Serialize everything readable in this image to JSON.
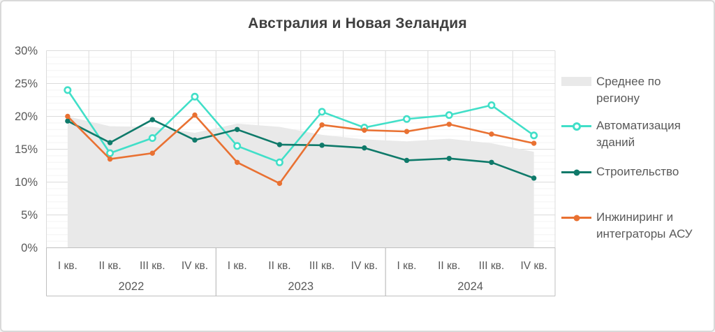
{
  "chart": {
    "title": "Австралия и Новая Зеландия"
  },
  "chart_data": {
    "type": "area+line",
    "title": "Австралия и Новая Зеландия",
    "categories": [
      "I кв. 2022",
      "II кв. 2022",
      "III кв. 2022",
      "IV кв. 2022",
      "I кв. 2023",
      "II кв. 2023",
      "III кв. 2023",
      "IV кв. 2023",
      "I кв. 2024",
      "II кв. 2024",
      "III кв. 2024",
      "IV кв. 2024"
    ],
    "x_axis": {
      "quarter_labels": [
        "I кв.",
        "II кв.",
        "III кв.",
        "IV кв.",
        "I кв.",
        "II кв.",
        "III кв.",
        "IV кв.",
        "I кв.",
        "II кв.",
        "III кв.",
        "IV кв."
      ],
      "year_groups": [
        {
          "label": "2022",
          "start": 0,
          "end": 3
        },
        {
          "label": "2023",
          "start": 4,
          "end": 7
        },
        {
          "label": "2024",
          "start": 8,
          "end": 11
        }
      ]
    },
    "y_axis": {
      "min": 0,
      "max": 30,
      "major_step": 5,
      "minor_step": 1,
      "unit": "%",
      "tick_labels": [
        "0%",
        "5%",
        "10%",
        "15%",
        "20%",
        "25%",
        "30%"
      ]
    },
    "grid": {
      "minor_horizontal": true,
      "major_horizontal": true,
      "vertical_category_boundaries": true
    },
    "legend_position": "right",
    "series": [
      {
        "name": "Среднее по региону",
        "type": "area",
        "color": "#e9e9e9",
        "values": [
          20,
          18.5,
          18.4,
          17.5,
          18.9,
          18.4,
          17.2,
          16.5,
          16.2,
          16.6,
          15.9,
          14.6
        ]
      },
      {
        "name": "Автоматизация зданий",
        "type": "line",
        "marker": "ring",
        "color": "#41dfc8",
        "values": [
          24,
          14.4,
          16.7,
          23,
          15.5,
          13,
          20.7,
          18.3,
          19.6,
          20.2,
          21.7,
          17.1
        ]
      },
      {
        "name": "Строительство",
        "type": "line",
        "marker": "dot",
        "color": "#0f7a6a",
        "values": [
          19.3,
          16,
          19.5,
          16.4,
          18,
          15.7,
          15.6,
          15.2,
          13.3,
          13.6,
          13,
          10.6
        ]
      },
      {
        "name": "Инжиниринг и интеграторы АСУ",
        "type": "line",
        "marker": "dot",
        "color": "#e97132",
        "values": [
          20,
          13.5,
          14.4,
          20.2,
          13,
          9.8,
          18.7,
          17.9,
          17.7,
          18.8,
          17.3,
          15.9
        ]
      }
    ]
  },
  "legend": {
    "items": [
      {
        "label": "Среднее по региону",
        "lines": [
          "Среднее по",
          "региону"
        ],
        "swatch": "area",
        "color": "#e9e9e9"
      },
      {
        "label": "Автоматизация зданий",
        "lines": [
          "Автоматизация",
          "зданий"
        ],
        "swatch": "line-ring",
        "color": "#41dfc8"
      },
      {
        "label": "Строительство",
        "lines": [
          "Строительство"
        ],
        "swatch": "line-dot",
        "color": "#0f7a6a"
      },
      {
        "label": "Инжиниринг и интеграторы АСУ",
        "lines": [
          "Инжиниринг и",
          "интеграторы АСУ"
        ],
        "swatch": "line-dot",
        "color": "#e97132"
      }
    ]
  },
  "colors": {
    "background": "#ffffff",
    "canvas_border": "#d9d9d9",
    "title_text": "#3f3f3f",
    "axis_text": "#595959",
    "grid_minor": "#f3f3f3",
    "grid_major": "#dbdbdb",
    "axis_line": "#bfbfbf",
    "area": "#e9e9e9",
    "building_automation": "#41dfc8",
    "construction": "#0f7a6a",
    "engineering_integrators": "#e97132"
  }
}
